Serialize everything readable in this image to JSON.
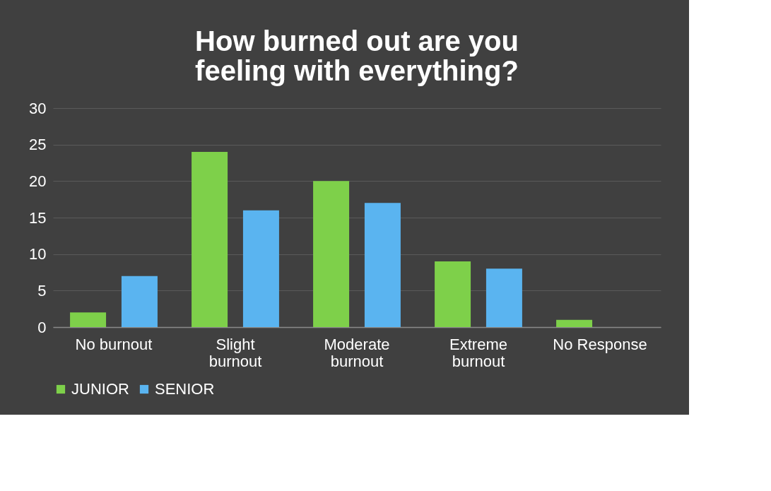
{
  "chart_data": {
    "type": "bar",
    "title": [
      "How burned out are you",
      "feeling with everything?"
    ],
    "categories": [
      "No burnout",
      "Slight\nburnout",
      "Moderate\nburnout",
      "Extreme\nburnout",
      "No Response"
    ],
    "series": [
      {
        "name": "JUNIOR",
        "color": "#7ed04a",
        "values": [
          2,
          24,
          20,
          9,
          1
        ]
      },
      {
        "name": "SENIOR",
        "color": "#5ab4f0",
        "values": [
          7,
          16,
          17,
          8,
          0
        ]
      }
    ],
    "ylim": [
      0,
      30
    ],
    "yticks": [
      0,
      5,
      10,
      15,
      20,
      25,
      30
    ],
    "grid": "y",
    "legend": "bottom"
  }
}
